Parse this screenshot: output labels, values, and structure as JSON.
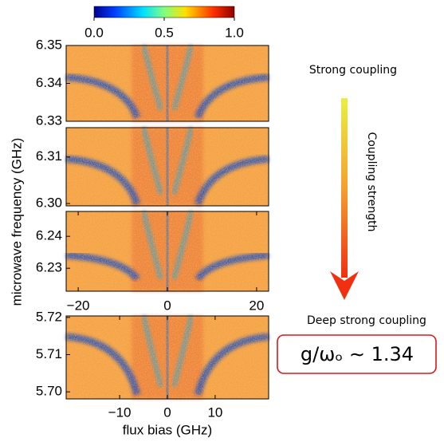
{
  "colorbar": {
    "lim": [
      0,
      1
    ],
    "ticks": [
      {
        "value": 0,
        "label": "0.0"
      },
      0.5,
      {
        "value": 1,
        "label": "1.0"
      }
    ]
  },
  "panels": [
    {
      "ylim": [
        6.33,
        6.35
      ],
      "yticks": [
        6.35,
        6.34,
        6.33
      ]
    },
    {
      "ylim": [
        6.2995,
        6.3163
      ],
      "yticks": [
        6.31,
        {
          "value": 6.3,
          "label": "6.30"
        }
      ]
    },
    {
      "ylim": [
        6.2228,
        6.2478
      ],
      "yticks": [
        6.24,
        6.23
      ]
    },
    {
      "ylim": [
        5.6981,
        5.7204
      ],
      "yticks": [
        5.72,
        5.71,
        {
          "value": 5.7,
          "label": "5.70"
        }
      ]
    }
  ],
  "upper_xaxis": {
    "xlim": [
      -22.7,
      22.7
    ],
    "xticks": [
      {
        "value": -20,
        "label": "−20"
      },
      0,
      20
    ]
  },
  "lower_xaxis": {
    "xlim": [
      -21.2,
      21.2
    ],
    "xticks": [
      {
        "value": -10,
        "label": "−10"
      },
      0,
      10
    ]
  },
  "ylabel": "microwave frequency (GHz)",
  "xlabel": "flux bias (GHz)",
  "annotations": {
    "top": "Strong coupling",
    "arrow": "Coupling strength",
    "bottom": "Deep strong coupling",
    "ratio": "g/ωₒ ∼ 1.34"
  }
}
